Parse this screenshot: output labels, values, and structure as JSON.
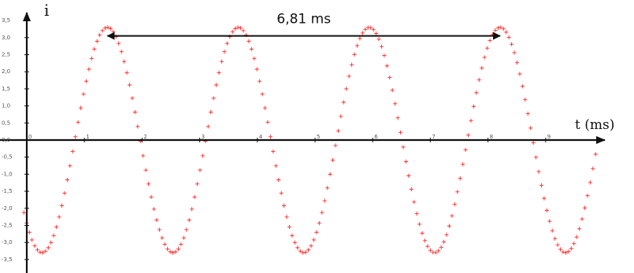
{
  "chart_data": {
    "type": "scatter",
    "title": "",
    "xlabel": "t (ms)",
    "ylabel": "i",
    "xlim": [
      -0.05,
      9.95
    ],
    "ylim": [
      -3.5,
      3.5
    ],
    "marker": "+",
    "grid": false,
    "x_ticks": [
      {
        "value": 0,
        "label": "0"
      },
      {
        "value": 1,
        "label": "1"
      },
      {
        "value": 2,
        "label": "2"
      },
      {
        "value": 3,
        "label": "3"
      },
      {
        "value": 4,
        "label": "4"
      },
      {
        "value": 5,
        "label": "5"
      },
      {
        "value": 6,
        "label": "6"
      },
      {
        "value": 7,
        "label": "7"
      },
      {
        "value": 8,
        "label": "8"
      },
      {
        "value": 9,
        "label": "9"
      }
    ],
    "y_ticks": [
      {
        "value": 3.5,
        "label": "3,5"
      },
      {
        "value": 3.0,
        "label": "3,0"
      },
      {
        "value": 2.5,
        "label": "2,5"
      },
      {
        "value": 2.0,
        "label": "2,0"
      },
      {
        "value": 1.5,
        "label": "1,5"
      },
      {
        "value": 1.0,
        "label": "1,0"
      },
      {
        "value": 0.5,
        "label": "0,5"
      },
      {
        "value": 0.0,
        "label": "0,0"
      },
      {
        "value": -0.5,
        "label": "-0,5"
      },
      {
        "value": -1.0,
        "label": "-1,0"
      },
      {
        "value": -1.5,
        "label": "-1,5"
      },
      {
        "value": -2.0,
        "label": "-2,0"
      },
      {
        "value": -2.5,
        "label": "-2,5"
      },
      {
        "value": -3.0,
        "label": "-3,0"
      },
      {
        "value": -3.5,
        "label": "-3,5"
      }
    ],
    "series": [
      {
        "color": "#ff2a2a",
        "amplitude": 3.3,
        "period_ms": 2.27,
        "peak_t_ms": [
          1.4,
          3.67,
          5.94,
          8.21
        ],
        "trough_t_ms": [
          0.27,
          2.54,
          4.81,
          7.08,
          9.35
        ],
        "sample_step_ms": 0.047,
        "x": [
          -0.05,
          9.95
        ]
      }
    ],
    "annotations": [
      {
        "text": "6,81 ms",
        "type": "double-arrow",
        "x_start": 1.4,
        "x_end": 8.21,
        "y": 3.05
      }
    ]
  }
}
